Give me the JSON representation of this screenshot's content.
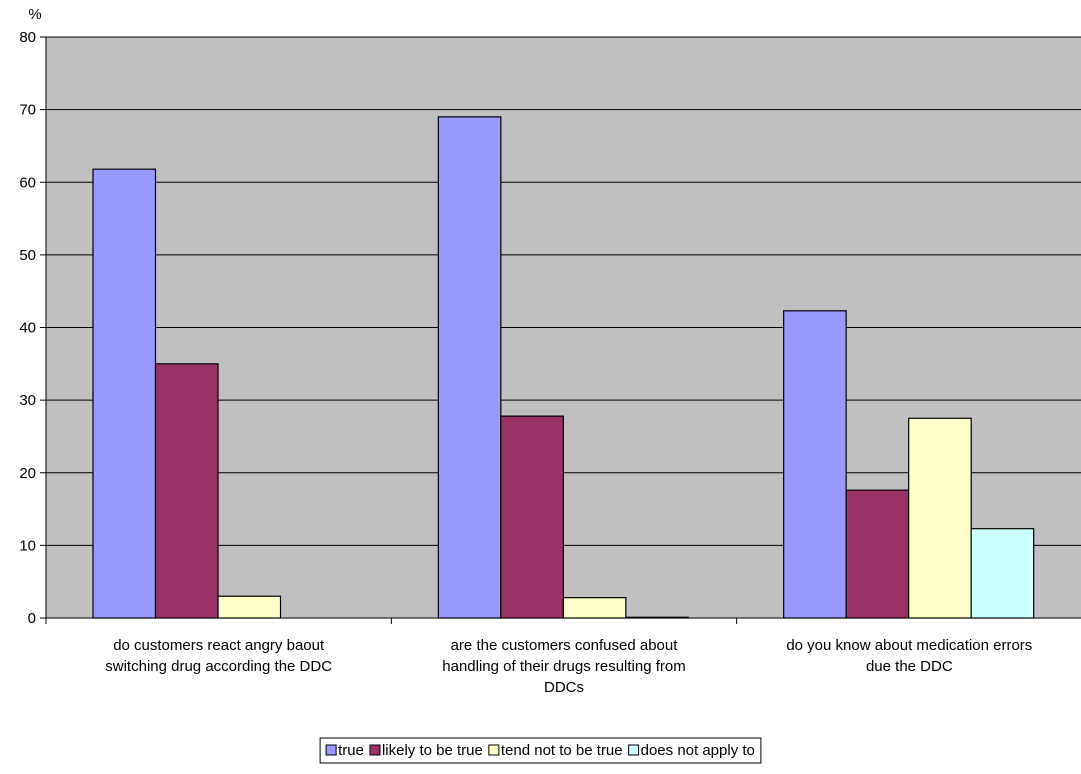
{
  "chart_data": {
    "type": "bar",
    "ylabel": "%",
    "ylim": [
      0,
      80
    ],
    "yticks": [
      0,
      10,
      20,
      30,
      40,
      50,
      60,
      70,
      80
    ],
    "grid": true,
    "legend_position": "bottom",
    "plot_background": "#C0C0C0",
    "categories": [
      "do customers react angry baout switching drug according the DDC",
      "are the customers confused about handling of their drugs resulting from DDCs",
      "do you know about medication errors due the DDC"
    ],
    "category_label_lines": [
      [
        "do customers react angry baout",
        "switching drug according the DDC"
      ],
      [
        "are the customers confused about",
        "handling of their drugs resulting from",
        "DDCs"
      ],
      [
        "do you know about medication errors",
        "due the DDC"
      ]
    ],
    "series": [
      {
        "name": "true",
        "color": "#9999FF",
        "values": [
          61.8,
          69.0,
          42.3
        ]
      },
      {
        "name": "likely to be true",
        "color": "#993366",
        "values": [
          35.0,
          27.8,
          17.6
        ]
      },
      {
        "name": "tend not to be true",
        "color": "#FFFFCC",
        "values": [
          3.0,
          2.8,
          27.5
        ]
      },
      {
        "name": "does not apply to",
        "color": "#CCFFFF",
        "values": [
          0,
          0.1,
          12.3
        ]
      }
    ]
  }
}
